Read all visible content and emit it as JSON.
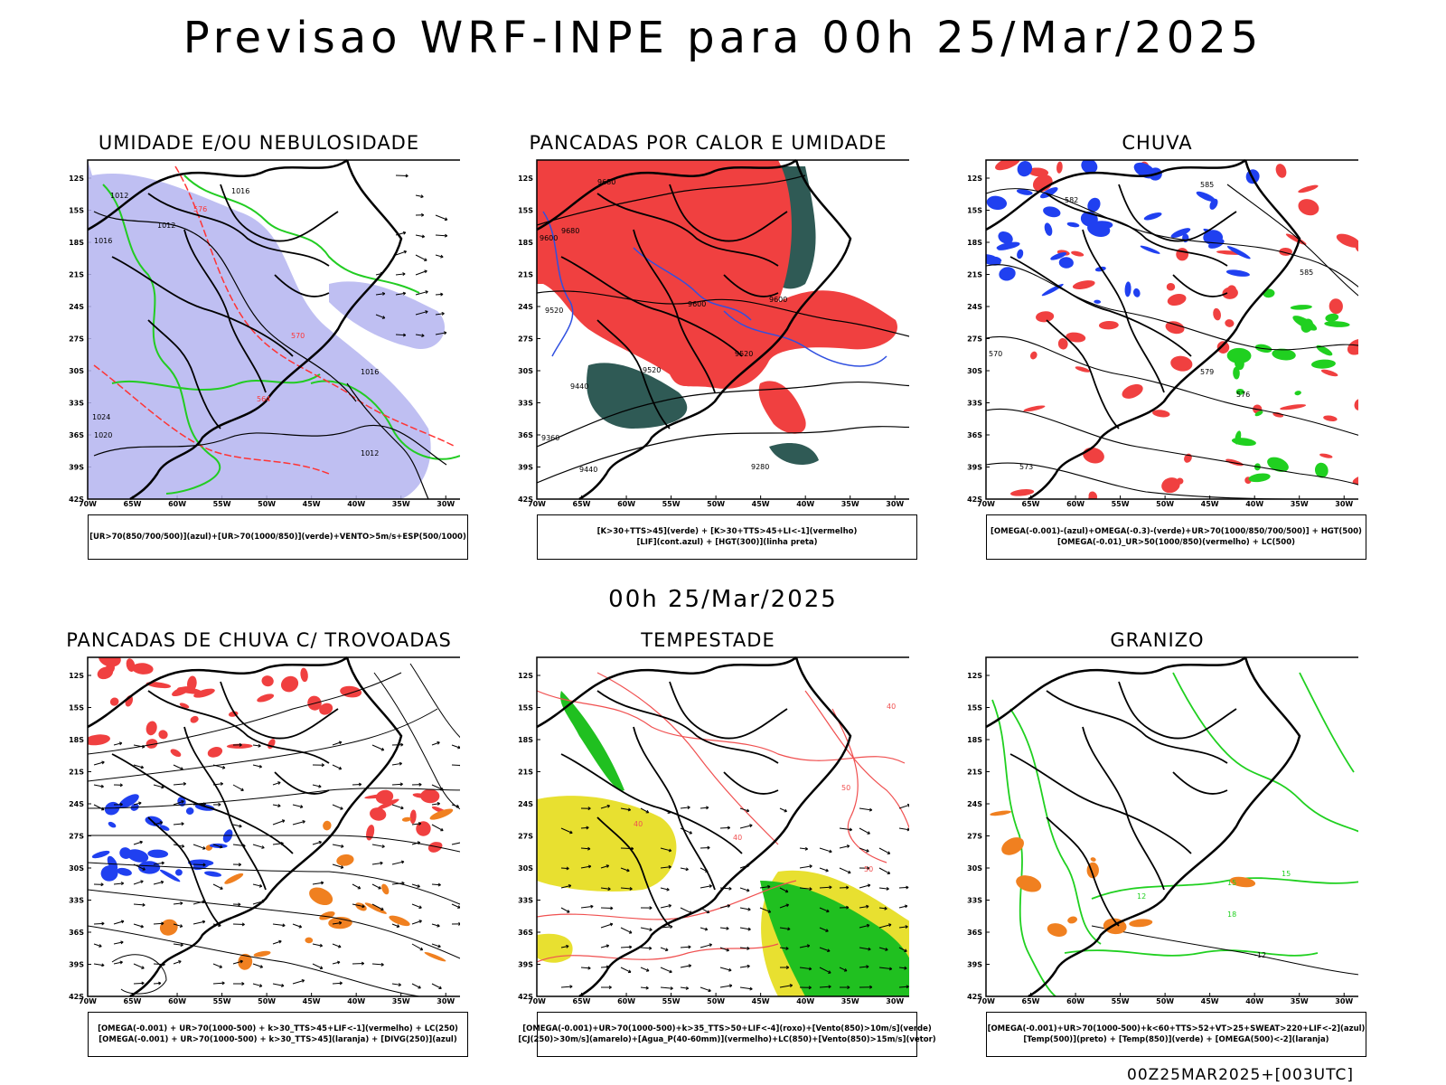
{
  "header": {
    "title": "Previsao WRF-INPE  para 00h 25/Mar/2025"
  },
  "middle": {
    "title": "00h 25/Mar/2025"
  },
  "footer": {
    "stamp": "00Z25MAR2025+[003UTC]"
  },
  "axes": {
    "lat_labels": [
      "12S",
      "15S",
      "18S",
      "21S",
      "24S",
      "27S",
      "30S",
      "33S",
      "36S",
      "39S",
      "42S"
    ],
    "lon_labels": [
      "70W",
      "65W",
      "60W",
      "55W",
      "50W",
      "45W",
      "40W",
      "35W",
      "30W"
    ]
  },
  "panels": [
    {
      "id": "umidade",
      "title": "UMIDADE E/OU NEBULOSIDADE",
      "legend": [
        "[UR>70(850/700/500)](azul)+[UR>70(1000/850)](verde)+VENTO>5m/s+ESP(500/1000)"
      ],
      "contour_labels": [
        "1012",
        "1016",
        "1012",
        "1016",
        "1020",
        "1024",
        "1016",
        "1012",
        "576",
        "570",
        "564"
      ],
      "colors": {
        "fill": "#b4b4f0",
        "line": "#22cc22",
        "contour": "#ff3333"
      }
    },
    {
      "id": "pancadas",
      "title": "PANCADAS POR CALOR E UMIDADE",
      "legend": [
        "[K>30+TTS>45](verde) + [K>30+TTS>45+LI<-1](vermelho)",
        "[LIF](cont.azul) + [HGT(300)](linha preta)"
      ],
      "contour_labels": [
        "9680",
        "9680",
        "9600",
        "9600",
        "9520",
        "9520",
        "9440",
        "9440",
        "9360",
        "9280",
        "9600",
        "9520"
      ],
      "colors": {
        "fill": "#f04040",
        "dark": "#2f5a55",
        "line": "#3050e0"
      }
    },
    {
      "id": "chuva",
      "title": "CHUVA",
      "legend": [
        "[OMEGA(-0.001)-(azul)+OMEGA(-0.3)-(verde)+UR>70(1000/850/700/500)] + HGT(500)",
        "[OMEGA(-0.01)_UR>50(1000/850)(vermelho) + LC(500)"
      ],
      "contour_labels": [
        "585",
        "585",
        "582",
        "579",
        "576",
        "573",
        "570"
      ],
      "colors": {
        "red": "#f04040",
        "blue": "#2040f0",
        "green": "#20d020"
      }
    },
    {
      "id": "trovoadas",
      "title": "PANCADAS DE CHUVA C/ TROVOADAS",
      "legend": [
        "[OMEGA(-0.001) + UR>70(1000-500) + k>30_TTS>45+LIF<-1](vermelho) + LC(250)",
        "[OMEGA(-0.001) + UR>70(1000-500) + k>30_TTS>45](laranja) + [DIVG(250)](azul)"
      ],
      "contour_labels": [],
      "colors": {
        "red": "#f04040",
        "orange": "#f08020",
        "blue": "#2040f0"
      }
    },
    {
      "id": "tempestade",
      "title": "TEMPESTADE",
      "legend": [
        "[OMEGA(-0.001)+UR>70(1000-500)+k>35_TTS>50+LIF<-4](roxo)+[Vento(850)>10m/s](verde)",
        "[CJ(250)>30m/s](amarelo)+[Agua_P(40-60mm)](vermelho)+LC(850)+[Vento(850)>15m/s](vetor)"
      ],
      "contour_labels": [
        "40",
        "40",
        "50",
        "50",
        "40"
      ],
      "colors": {
        "yellow": "#e8e030",
        "green": "#20c020",
        "red": "#f05050"
      }
    },
    {
      "id": "granizo",
      "title": "GRANIZO",
      "legend": [
        "[OMEGA(-0.001)+UR>70(1000-500)+k<60+TTS>52+VT>25+SWEAT>220+LIF<-2](azul)",
        "[Temp(500)](preto) + [Temp(850)](verde) + [OMEGA(500)<-2](laranja)"
      ],
      "contour_labels": [
        "15",
        "15",
        "12",
        "-12",
        "18"
      ],
      "colors": {
        "green": "#20d020",
        "orange": "#f08020"
      }
    }
  ]
}
